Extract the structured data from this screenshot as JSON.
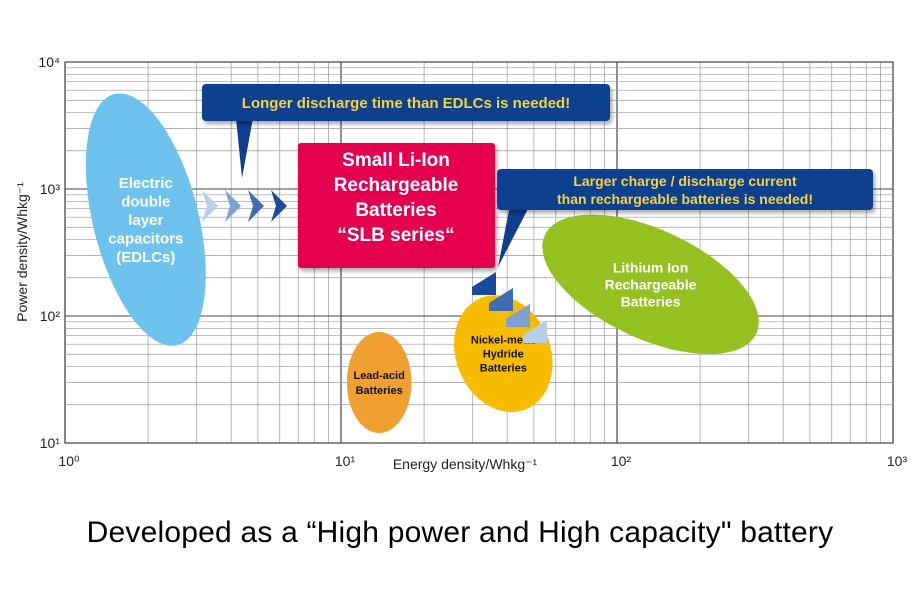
{
  "chart_data": {
    "type": "scatter",
    "xlabel": "Energy density/Whkg⁻¹",
    "ylabel": "Power density/Whkg⁻¹",
    "x_scale": "log",
    "y_scale": "log",
    "xlim": [
      1,
      1000
    ],
    "ylim": [
      10,
      10000
    ],
    "x_ticks": [
      "10⁰",
      "10¹",
      "10²",
      "10³"
    ],
    "y_ticks": [
      "10¹",
      "10²",
      "10³",
      "10⁴"
    ],
    "grid": true,
    "regions": [
      {
        "name": "EDLCs",
        "label": [
          "Electric",
          "double",
          "layer",
          "capacitors",
          "(EDLCs)"
        ],
        "color": "#6ec3ee",
        "x_range": [
          1.1,
          3.5
        ],
        "y_range": [
          55,
          6000
        ]
      },
      {
        "name": "Lead-acid",
        "label": [
          "Lead-acid",
          "Batteries"
        ],
        "color": "#f0a030",
        "x_range": [
          10.5,
          18
        ],
        "y_range": [
          12,
          75
        ]
      },
      {
        "name": "Nickel-metal Hydride",
        "label": [
          "Nickel-metal",
          "Hydride",
          "Batteries"
        ],
        "color": "#f7bb00",
        "x_range": [
          25,
          60
        ],
        "y_range": [
          17,
          150
        ]
      },
      {
        "name": "Lithium Ion",
        "label": [
          "Lithium Ion",
          "Rechargeable",
          "Batteries"
        ],
        "color": "#94c11f",
        "x_range": [
          50,
          350
        ],
        "y_range": [
          45,
          700
        ]
      }
    ],
    "highlight": {
      "label": [
        "Small Li-Ion",
        "Rechargeable",
        "Batteries",
        "“SLB series“"
      ],
      "color": "#e5004f"
    },
    "callouts": [
      "Longer discharge time than EDLCs is needed!",
      [
        "Larger charge / discharge current",
        "than rechargeable batteries is needed!"
      ]
    ]
  },
  "caption": "Developed as a “High power and High capacity\" battery"
}
